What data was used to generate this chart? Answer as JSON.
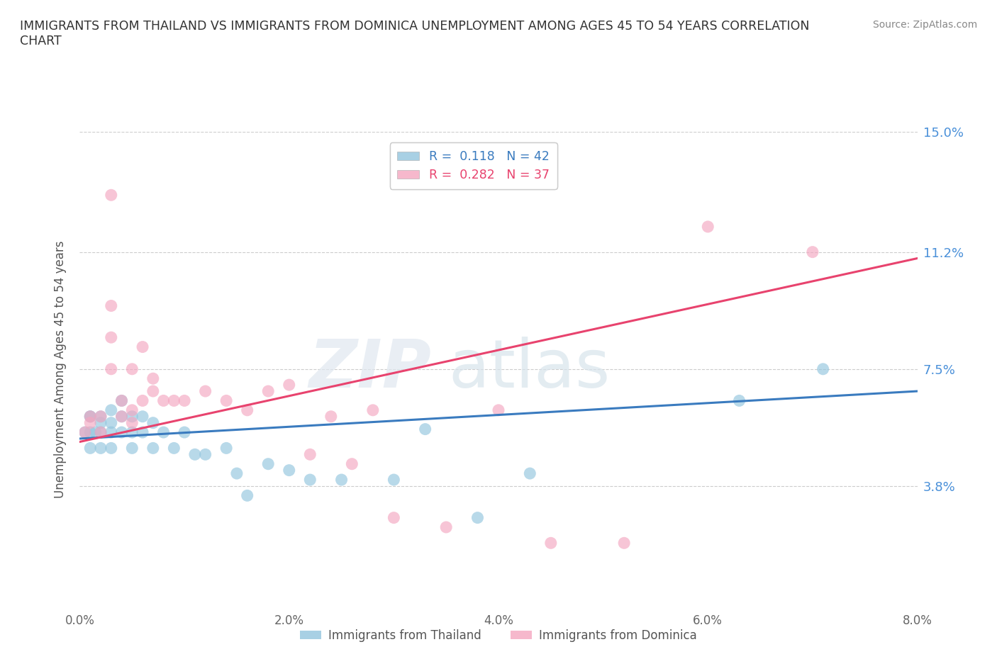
{
  "title": "IMMIGRANTS FROM THAILAND VS IMMIGRANTS FROM DOMINICA UNEMPLOYMENT AMONG AGES 45 TO 54 YEARS CORRELATION\nCHART",
  "source": "Source: ZipAtlas.com",
  "ylabel": "Unemployment Among Ages 45 to 54 years",
  "xlim": [
    0.0,
    0.08
  ],
  "ylim": [
    0.0,
    0.15
  ],
  "yticks": [
    0.038,
    0.075,
    0.112,
    0.15
  ],
  "ytick_labels": [
    "3.8%",
    "7.5%",
    "11.2%",
    "15.0%"
  ],
  "xticks": [
    0.0,
    0.02,
    0.04,
    0.06,
    0.08
  ],
  "xtick_labels": [
    "0.0%",
    "2.0%",
    "4.0%",
    "6.0%",
    "8.0%"
  ],
  "thailand_color": "#92c5de",
  "dominica_color": "#f4a6c0",
  "trend_thailand_color": "#3a7bbf",
  "trend_dominica_color": "#e8436e",
  "thailand_R": 0.118,
  "thailand_N": 42,
  "dominica_R": 0.282,
  "dominica_N": 37,
  "background_color": "#ffffff",
  "thailand_x": [
    0.0005,
    0.001,
    0.001,
    0.001,
    0.001,
    0.0015,
    0.002,
    0.002,
    0.002,
    0.002,
    0.003,
    0.003,
    0.003,
    0.003,
    0.004,
    0.004,
    0.004,
    0.005,
    0.005,
    0.005,
    0.006,
    0.006,
    0.007,
    0.007,
    0.008,
    0.009,
    0.01,
    0.011,
    0.012,
    0.014,
    0.015,
    0.016,
    0.018,
    0.02,
    0.022,
    0.025,
    0.03,
    0.033,
    0.038,
    0.043,
    0.063,
    0.071
  ],
  "thailand_y": [
    0.055,
    0.05,
    0.055,
    0.06,
    0.06,
    0.055,
    0.05,
    0.055,
    0.058,
    0.06,
    0.05,
    0.055,
    0.058,
    0.062,
    0.055,
    0.06,
    0.065,
    0.05,
    0.055,
    0.06,
    0.055,
    0.06,
    0.05,
    0.058,
    0.055,
    0.05,
    0.055,
    0.048,
    0.048,
    0.05,
    0.042,
    0.035,
    0.045,
    0.043,
    0.04,
    0.04,
    0.04,
    0.056,
    0.028,
    0.042,
    0.065,
    0.075
  ],
  "dominica_x": [
    0.0005,
    0.001,
    0.001,
    0.002,
    0.002,
    0.003,
    0.003,
    0.003,
    0.003,
    0.004,
    0.004,
    0.005,
    0.005,
    0.005,
    0.006,
    0.006,
    0.007,
    0.007,
    0.008,
    0.009,
    0.01,
    0.012,
    0.014,
    0.016,
    0.018,
    0.02,
    0.022,
    0.024,
    0.026,
    0.028,
    0.03,
    0.035,
    0.04,
    0.045,
    0.052,
    0.06,
    0.07
  ],
  "dominica_y": [
    0.055,
    0.058,
    0.06,
    0.055,
    0.06,
    0.075,
    0.085,
    0.095,
    0.13,
    0.06,
    0.065,
    0.058,
    0.062,
    0.075,
    0.065,
    0.082,
    0.068,
    0.072,
    0.065,
    0.065,
    0.065,
    0.068,
    0.065,
    0.062,
    0.068,
    0.07,
    0.048,
    0.06,
    0.045,
    0.062,
    0.028,
    0.025,
    0.062,
    0.02,
    0.02,
    0.12,
    0.112
  ],
  "trend_thailand_x0": 0.0,
  "trend_thailand_y0": 0.053,
  "trend_thailand_x1": 0.08,
  "trend_thailand_y1": 0.068,
  "trend_dominica_x0": 0.0,
  "trend_dominica_y0": 0.052,
  "trend_dominica_x1": 0.08,
  "trend_dominica_y1": 0.11
}
